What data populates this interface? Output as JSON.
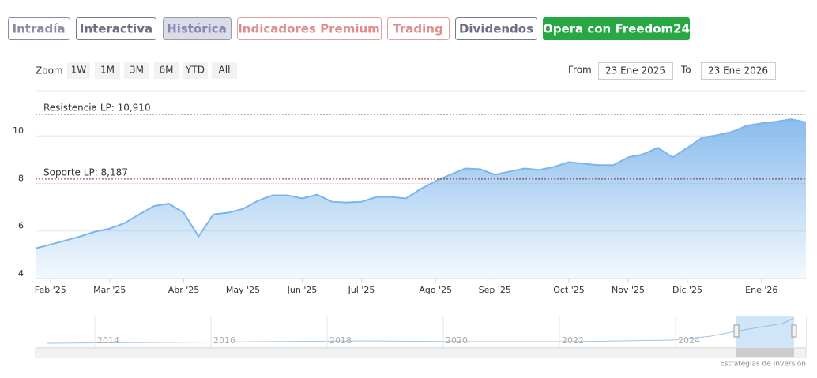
{
  "tabs": [
    "Intradía",
    "Interactiva",
    "Histórica",
    "Indicadores Premium",
    "Trading",
    "Dividendos",
    "Opera con Freedom24"
  ],
  "zoom": {
    "label": "Zoom",
    "buttons": [
      "1W",
      "1M",
      "3M",
      "6M",
      "YTD",
      "All"
    ]
  },
  "range": {
    "from_label": "From",
    "from": "23 Ene 2025",
    "to_label": "To",
    "to": "23 Ene 2026"
  },
  "chart_data": {
    "type": "area",
    "categories": [
      null,
      "Feb '25",
      null,
      null,
      null,
      "Mar '25",
      null,
      null,
      null,
      null,
      "Abr '25",
      null,
      null,
      null,
      "May '25",
      null,
      null,
      null,
      "Jun '25",
      null,
      null,
      null,
      "Jul '25",
      null,
      null,
      null,
      null,
      "Ago '25",
      null,
      null,
      null,
      "Sep '25",
      null,
      null,
      null,
      null,
      "Oct '25",
      null,
      null,
      null,
      "Nov '25",
      null,
      null,
      null,
      "Dic '25",
      null,
      null,
      null,
      null,
      "Ene '26",
      null,
      null,
      null
    ],
    "values": [
      5.27,
      5.43,
      5.6,
      5.77,
      5.97,
      6.1,
      6.33,
      6.7,
      7.05,
      7.15,
      6.77,
      5.77,
      6.7,
      6.77,
      6.93,
      7.27,
      7.5,
      7.5,
      7.37,
      7.53,
      7.23,
      7.2,
      7.23,
      7.43,
      7.43,
      7.37,
      7.77,
      8.1,
      8.37,
      8.63,
      8.6,
      8.37,
      8.5,
      8.63,
      8.57,
      8.7,
      8.9,
      8.83,
      8.77,
      8.77,
      9.1,
      9.23,
      9.5,
      9.1,
      9.5,
      9.93,
      10.03,
      10.17,
      10.43,
      10.53,
      10.6,
      10.7,
      10.57
    ],
    "color": "#7cb5ec",
    "ylim": [
      4,
      11.9
    ],
    "yticks": [
      4,
      6,
      8,
      10
    ],
    "grid": true,
    "annotations": [
      {
        "label": "Resistencia LP: 10,910",
        "value": 10.91
      },
      {
        "label": "Soporte LP: 8,187",
        "value": 8.187
      }
    ]
  },
  "navigator": {
    "years": [
      "2014",
      "2016",
      "2018",
      "2020",
      "2022",
      "2024"
    ]
  },
  "footer": "Estrategias de Inversión"
}
